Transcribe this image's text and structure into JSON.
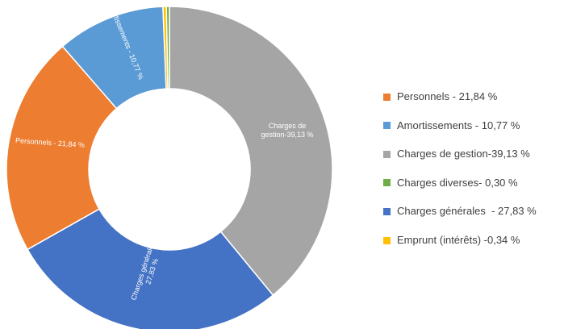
{
  "chart_data": {
    "type": "donut",
    "categories": [
      "Personnels - 21,84 %",
      "Amortissements - 10,77 %",
      "Charges de gestion-39,13 %",
      "Charges diverses- 0,30 %",
      "Charges générales  - 27,83 %",
      "Emprunt (intérêts) -0,34 %"
    ],
    "values": [
      21.84,
      10.77,
      39.13,
      0.3,
      27.83,
      0.34
    ],
    "value_labels": [
      "Personnels - 21,84 %",
      "Amortissements - 10,77 %",
      "Charges de gestion-39,13 %",
      null,
      "Charges générales - 27,83 %",
      null
    ],
    "colors": [
      "#ed7d31",
      "#5b9bd5",
      "#a5a5a5",
      "#70ad47",
      "#4472c4",
      "#ffc000"
    ],
    "legend": "right"
  }
}
